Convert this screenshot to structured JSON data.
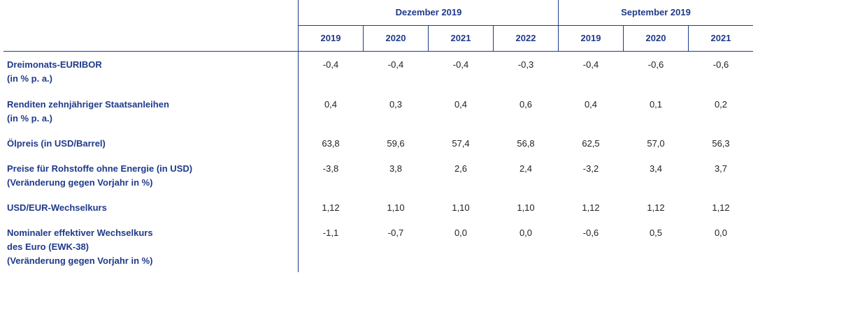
{
  "header": {
    "groups": [
      {
        "label": "Dezember 2019",
        "years": [
          "2019",
          "2020",
          "2021",
          "2022"
        ]
      },
      {
        "label": "September 2019",
        "years": [
          "2019",
          "2020",
          "2021"
        ]
      }
    ]
  },
  "rows": [
    {
      "label": [
        "Dreimonats-EURIBOR",
        "(in % p. a.)"
      ],
      "values": [
        "-0,4",
        "-0,4",
        "-0,4",
        "-0,3",
        "-0,4",
        "-0,6",
        "-0,6"
      ]
    },
    {
      "label": [
        "Renditen zehnjähriger Staatsanleihen",
        "(in % p. a.)"
      ],
      "values": [
        "0,4",
        "0,3",
        "0,4",
        "0,6",
        "0,4",
        "0,1",
        "0,2"
      ]
    },
    {
      "label": [
        "Ölpreis (in USD/Barrel)"
      ],
      "values": [
        "63,8",
        "59,6",
        "57,4",
        "56,8",
        "62,5",
        "57,0",
        "56,3"
      ]
    },
    {
      "label": [
        "Preise für Rohstoffe ohne Energie (in USD)",
        "(Veränderung gegen Vorjahr in %)"
      ],
      "values": [
        "-3,8",
        "3,8",
        "2,6",
        "2,4",
        "-3,2",
        "3,4",
        "3,7"
      ]
    },
    {
      "label": [
        "USD/EUR-Wechselkurs"
      ],
      "values": [
        "1,12",
        "1,10",
        "1,10",
        "1,10",
        "1,12",
        "1,12",
        "1,12"
      ]
    },
    {
      "label": [
        "Nominaler effektiver Wechselkurs",
        "des Euro (EWK-38)",
        "(Veränderung gegen Vorjahr in %)"
      ],
      "values": [
        "-1,1",
        "-0,7",
        "0,0",
        "0,0",
        "-0,6",
        "0,5",
        "0,0"
      ]
    }
  ]
}
